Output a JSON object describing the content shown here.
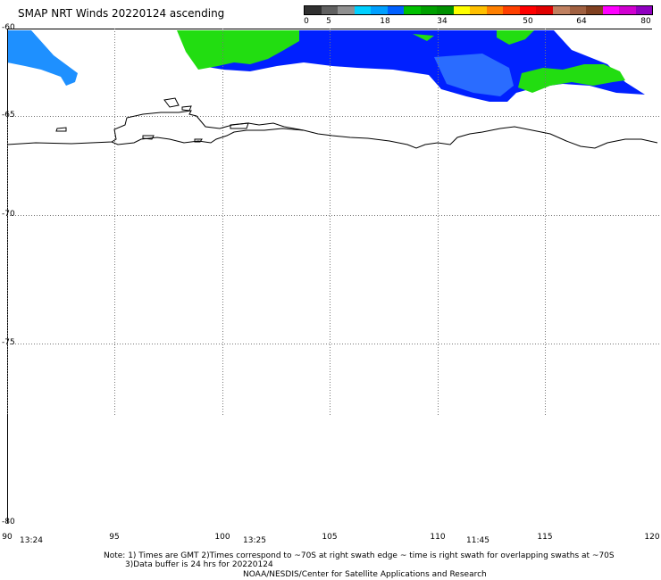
{
  "title": "SMAP NRT Winds 20220124 ascending",
  "colorbar": {
    "labels": [
      "0",
      "5",
      "18",
      "34",
      "50",
      "64",
      "80"
    ],
    "colors": [
      "#303030",
      "#606060",
      "#909090",
      "#00d0ff",
      "#00a0ff",
      "#0060ff",
      "#00c000",
      "#00a000",
      "#009000",
      "#ffff00",
      "#ffc000",
      "#ff8000",
      "#ff4000",
      "#ff0000",
      "#e00000",
      "#c08060",
      "#a06040",
      "#804020",
      "#ff00ff",
      "#d000d0",
      "#9000c0"
    ]
  },
  "lat_labels": [
    "-60",
    "-65",
    "-70",
    "-75",
    "-80"
  ],
  "lon_labels": [
    "90",
    "95",
    "100",
    "105",
    "110",
    "115",
    "120"
  ],
  "time_labels": [
    "13:24",
    "13:25",
    "11:45"
  ],
  "wind_colors": {
    "light_blue": "#1e90ff",
    "blue": "#0020ff",
    "mid_blue": "#2a6cff",
    "green": "#22dd11"
  },
  "note": {
    "line1": "Note: 1) Times are GMT 2)Times correspond to ~70S at right swath edge ~ time is right swath for overlapping swaths at ~70S",
    "line2": "3)Data buffer is 24 hrs for 20220124",
    "line3": "NOAA/NESDIS/Center for Satellite Applications and Research"
  }
}
